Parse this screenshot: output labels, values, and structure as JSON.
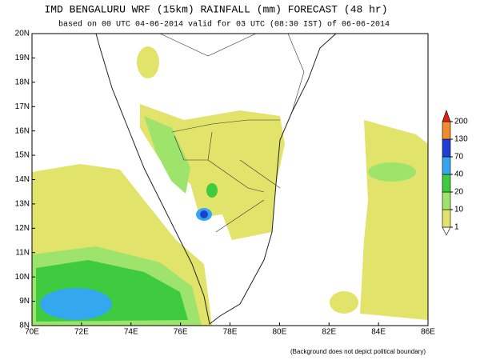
{
  "header": {
    "title": "IMD BENGALURU WRF (15km) RAINFALL (mm) FORECAST (48 hr)",
    "subtitle": "based on 00 UTC  04-06-2014 valid for 03 UTC (08:30 IST) of 06-06-2014"
  },
  "map": {
    "xlim": [
      70,
      86
    ],
    "ylim": [
      8,
      20
    ],
    "xticks": [
      {
        "value": 70,
        "label": "70E"
      },
      {
        "value": 72,
        "label": "72E"
      },
      {
        "value": 74,
        "label": "74E"
      },
      {
        "value": 76,
        "label": "76E"
      },
      {
        "value": 78,
        "label": "78E"
      },
      {
        "value": 80,
        "label": "80E"
      },
      {
        "value": 82,
        "label": "82E"
      },
      {
        "value": 84,
        "label": "84E"
      },
      {
        "value": 86,
        "label": "86E"
      }
    ],
    "yticks": [
      {
        "value": 8,
        "label": "8N"
      },
      {
        "value": 9,
        "label": "9N"
      },
      {
        "value": 10,
        "label": "10N"
      },
      {
        "value": 11,
        "label": "11N"
      },
      {
        "value": 12,
        "label": "12N"
      },
      {
        "value": 13,
        "label": "13N"
      },
      {
        "value": 14,
        "label": "14N"
      },
      {
        "value": 15,
        "label": "15N"
      },
      {
        "value": 16,
        "label": "16N"
      },
      {
        "value": 17,
        "label": "17N"
      },
      {
        "value": 18,
        "label": "18N"
      },
      {
        "value": 19,
        "label": "19N"
      },
      {
        "value": 20,
        "label": "20N"
      }
    ]
  },
  "legend": {
    "levels": [
      1,
      10,
      20,
      40,
      70,
      130,
      200
    ],
    "colors": [
      "#e2e36a",
      "#9de36c",
      "#3fcb3f",
      "#33a8ee",
      "#1f3fd4",
      "#f28a2e",
      "#e0201c"
    ]
  },
  "footnote": "(Background does not depict political boundary)"
}
